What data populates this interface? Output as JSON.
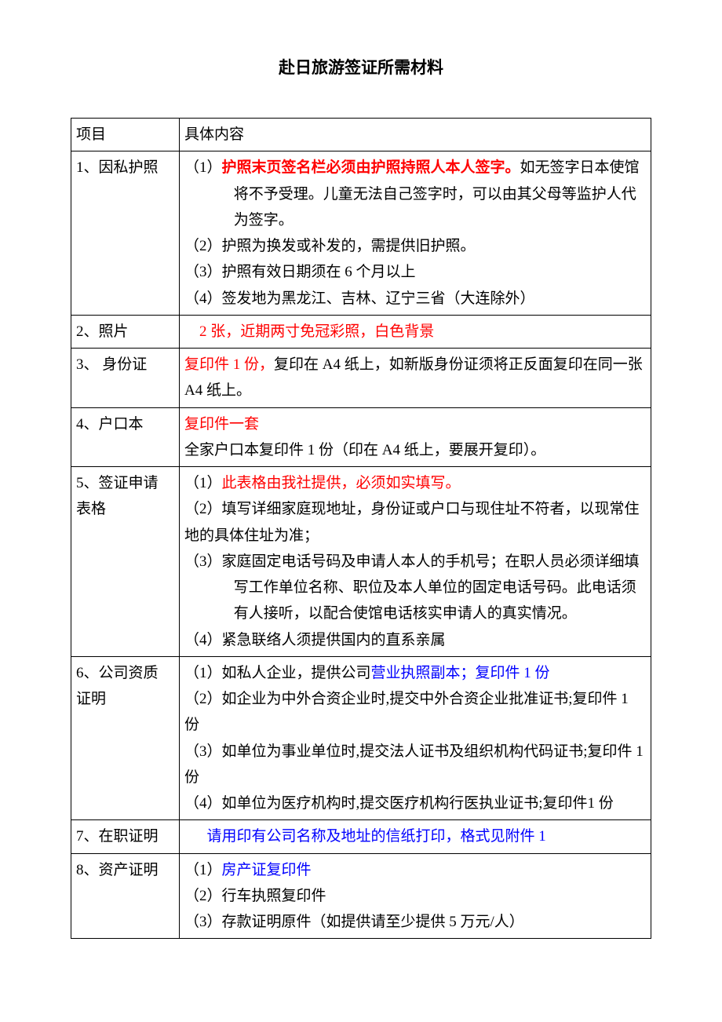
{
  "title": "赴日旅游签证所需材料",
  "header": {
    "col1": "项目",
    "col2": "具体内容"
  },
  "rows": {
    "r1": {
      "label": "1、因私护照",
      "i1_prefix": "（1）",
      "i1_red": "护照末页签名栏必须由护照持照人本人签字。",
      "i1_after": "如无签字日本使馆将不予受理。儿童无法自己签字时，可以由其父母等监护人代为签字。",
      "i2": "（2）护照为换发或补发的，需提供旧护照。",
      "i3": "（3）护照有效日期须在 6 个月以上",
      "i4": "（4）签发地为黑龙江、吉林、辽宁三省（大连除外）"
    },
    "r2": {
      "label": "2、照片",
      "content": "2 张，近期两寸免冠彩照，白色背景"
    },
    "r3": {
      "label": "3、 身份证",
      "red": "复印件 1 份，",
      "after": "复印在 A4 纸上，如新版身份证须将正反面复印在同一张 A4 纸上。"
    },
    "r4": {
      "label": "4、户口本",
      "red": "复印件一套",
      "line2": "全家户口本复印件 1 份（印在 A4 纸上，要展开复印）。"
    },
    "r5": {
      "label_l1": "5、签证申请",
      "label_l2": "表格",
      "i1_prefix": "（1）",
      "i1_red": "此表格由我社提供，必须如实填写。",
      "i2": "（2）填写详细家庭现地址，身份证或户口与现住址不符者，以现常住地的具体住址为准；",
      "i3": "（3）家庭固定电话号码及申请人本人的手机号；在职人员必须详细填写工作单位名称、职位及本人单位的固定电话号码。此电话须有人接听，以配合使馆电话核实申请人的真实情况。",
      "i4": "（4）紧急联络人须提供国内的直系亲属"
    },
    "r6": {
      "label_l1": "6、公司资质",
      "label_l2": "证明",
      "i1_before": "（1）如私人企业，提供公司",
      "i1_blue": "营业执照副本；复印件 1 份",
      "i2": "（2）如企业为中外合资企业时,提交中外合资企业批准证书;复印件 1 份",
      "i3": "（3）如单位为事业单位时,提交法人证书及组织机构代码证书;复印件 1 份",
      "i4": "（4）如单位为医疗机构时,提交医疗机构行医执业证书;复印件1 份"
    },
    "r7": {
      "label": "7、在职证明",
      "content": "请用印有公司名称及地址的信纸打印，格式见附件 1"
    },
    "r8": {
      "label": "8、资产证明",
      "i1_prefix": "（1）",
      "i1_blue": "房产证复印件",
      "i2": "（2）行车执照复印件",
      "i3": "（3）存款证明原件（如提供请至少提供 5 万元/人）"
    }
  }
}
